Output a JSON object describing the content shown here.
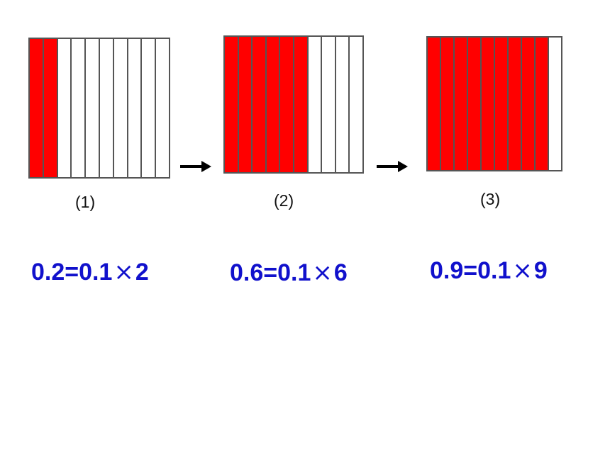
{
  "colors": {
    "shaded": "#ff0000",
    "unshaded": "#ffffff",
    "equation": "#1111cc",
    "border": "#555555"
  },
  "panels": [
    {
      "label": "(1)",
      "total_strips": 10,
      "shaded_strips": 2,
      "equation": {
        "lhs": "0.2=0.1",
        "times": "×",
        "rhs": "2"
      }
    },
    {
      "label": "(2)",
      "total_strips": 10,
      "shaded_strips": 6,
      "equation": {
        "lhs": "0.6=0.1",
        "times": "×",
        "rhs": "6"
      }
    },
    {
      "label": "(3)",
      "total_strips": 10,
      "shaded_strips": 9,
      "equation": {
        "lhs": "0.9=0.1",
        "times": "×",
        "rhs": "9"
      }
    }
  ],
  "arrows": [
    {
      "icon": "right-arrow-icon"
    },
    {
      "icon": "right-arrow-icon"
    }
  ]
}
